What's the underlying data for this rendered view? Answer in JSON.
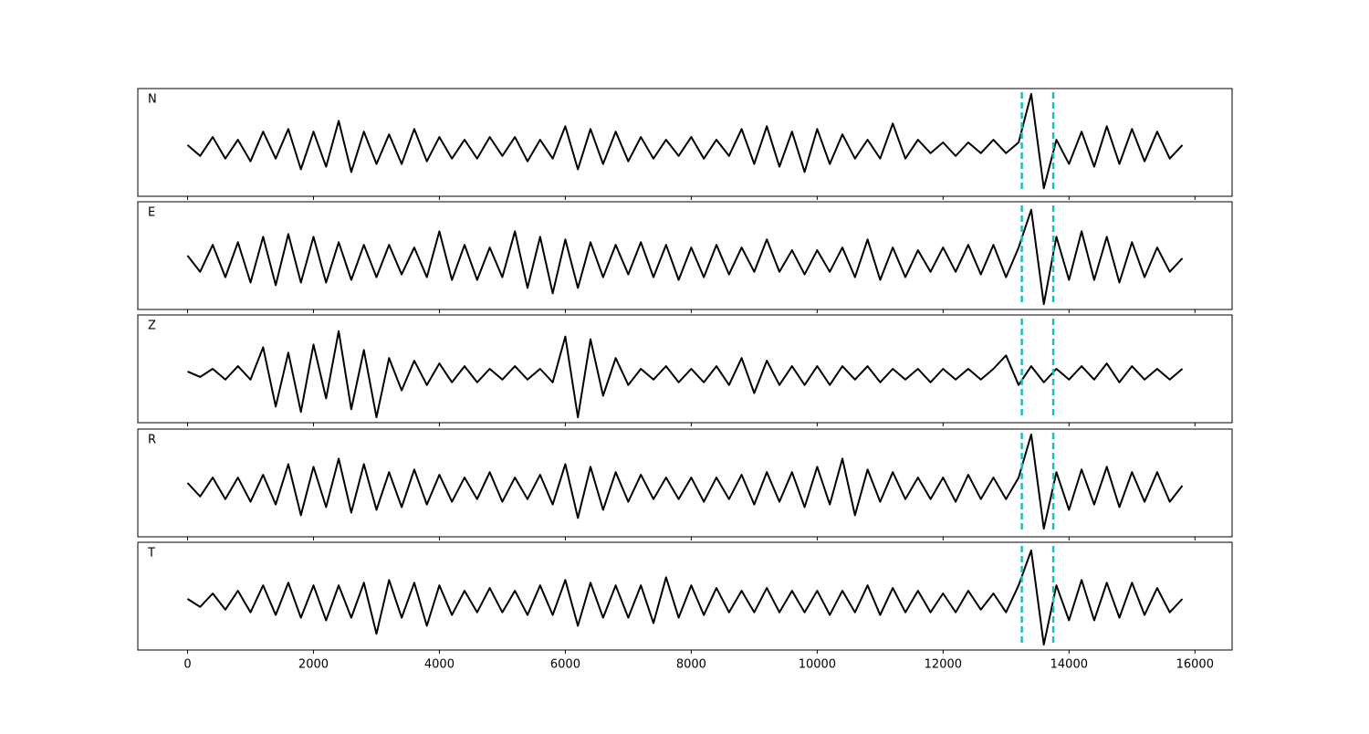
{
  "chart_data": [
    {
      "type": "line",
      "label": "N",
      "xlim": [
        -790,
        16590
      ],
      "ylim": [
        -0.9,
        1.1
      ],
      "vlines": [
        13250,
        13750
      ],
      "vline_color": "#17bfbf",
      "x": [
        0,
        200,
        400,
        600,
        800,
        1000,
        1200,
        1400,
        1600,
        1800,
        2000,
        2200,
        2400,
        2600,
        2800,
        3000,
        3200,
        3400,
        3600,
        3800,
        4000,
        4200,
        4400,
        4600,
        4800,
        5000,
        5200,
        5400,
        5600,
        5800,
        6000,
        6200,
        6400,
        6600,
        6800,
        7000,
        7200,
        7400,
        7600,
        7800,
        8000,
        8200,
        8400,
        8600,
        8800,
        9000,
        9200,
        9400,
        9600,
        9800,
        10000,
        10200,
        10400,
        10600,
        10800,
        11000,
        11200,
        11400,
        11600,
        11800,
        12000,
        12200,
        12400,
        12600,
        12800,
        13000,
        13200,
        13400,
        13600,
        13800,
        14000,
        14200,
        14400,
        14600,
        14800,
        15000,
        15200,
        15400,
        15600,
        15800
      ],
      "series": [
        {
          "color": "#000000",
          "values": [
            0.05,
            -0.15,
            0.2,
            -0.2,
            0.15,
            -0.25,
            0.3,
            -0.2,
            0.35,
            -0.4,
            0.3,
            -0.35,
            0.5,
            -0.45,
            0.3,
            -0.3,
            0.25,
            -0.3,
            0.35,
            -0.25,
            0.2,
            -0.2,
            0.15,
            -0.2,
            0.2,
            -0.15,
            0.2,
            -0.25,
            0.15,
            -0.2,
            0.4,
            -0.4,
            0.35,
            -0.3,
            0.3,
            -0.25,
            0.2,
            -0.2,
            0.15,
            -0.15,
            0.2,
            -0.2,
            0.15,
            -0.15,
            0.35,
            -0.3,
            0.4,
            -0.35,
            0.3,
            -0.45,
            0.35,
            -0.3,
            0.25,
            -0.2,
            0.15,
            -0.2,
            0.45,
            -0.2,
            0.15,
            -0.1,
            0.1,
            -0.15,
            0.1,
            -0.1,
            0.15,
            -0.1,
            0.1,
            1.0,
            -0.75,
            0.15,
            -0.3,
            0.3,
            -0.35,
            0.4,
            -0.3,
            0.35,
            -0.25,
            0.3,
            -0.2,
            0.05
          ]
        }
      ]
    },
    {
      "type": "line",
      "label": "E",
      "xlim": [
        -790,
        16590
      ],
      "ylim": [
        -0.9,
        1.1
      ],
      "vlines": [
        13250,
        13750
      ],
      "vline_color": "#17bfbf",
      "x": [
        0,
        200,
        400,
        600,
        800,
        1000,
        1200,
        1400,
        1600,
        1800,
        2000,
        2200,
        2400,
        2600,
        2800,
        3000,
        3200,
        3400,
        3600,
        3800,
        4000,
        4200,
        4400,
        4600,
        4800,
        5000,
        5200,
        5400,
        5600,
        5800,
        6000,
        6200,
        6400,
        6600,
        6800,
        7000,
        7200,
        7400,
        7600,
        7800,
        8000,
        8200,
        8400,
        8600,
        8800,
        9000,
        9200,
        9400,
        9600,
        9800,
        10000,
        10200,
        10400,
        10600,
        10800,
        11000,
        11200,
        11400,
        11600,
        11800,
        12000,
        12200,
        12400,
        12600,
        12800,
        13000,
        13200,
        13400,
        13600,
        13800,
        14000,
        14200,
        14400,
        14600,
        14800,
        15000,
        15200,
        15400,
        15600,
        15800
      ],
      "series": [
        {
          "color": "#000000",
          "values": [
            0.1,
            -0.2,
            0.3,
            -0.3,
            0.35,
            -0.4,
            0.45,
            -0.45,
            0.5,
            -0.4,
            0.45,
            -0.4,
            0.35,
            -0.35,
            0.3,
            -0.3,
            0.3,
            -0.25,
            0.25,
            -0.3,
            0.55,
            -0.35,
            0.3,
            -0.35,
            0.25,
            -0.3,
            0.55,
            -0.5,
            0.45,
            -0.6,
            0.4,
            -0.5,
            0.35,
            -0.3,
            0.3,
            -0.25,
            0.35,
            -0.3,
            0.3,
            -0.35,
            0.25,
            -0.3,
            0.3,
            -0.25,
            0.25,
            -0.2,
            0.4,
            -0.2,
            0.2,
            -0.25,
            0.2,
            -0.2,
            0.25,
            -0.3,
            0.4,
            -0.35,
            0.25,
            -0.3,
            0.2,
            -0.2,
            0.25,
            -0.2,
            0.3,
            -0.25,
            0.3,
            -0.3,
            0.25,
            0.95,
            -0.8,
            0.45,
            -0.35,
            0.55,
            -0.35,
            0.45,
            -0.4,
            0.35,
            -0.3,
            0.25,
            -0.2,
            0.05
          ]
        }
      ]
    },
    {
      "type": "line",
      "label": "Z",
      "xlim": [
        -790,
        16590
      ],
      "ylim": [
        -0.9,
        1.1
      ],
      "vlines": [
        13250,
        13750
      ],
      "vline_color": "#17bfbf",
      "x": [
        0,
        200,
        400,
        600,
        800,
        1000,
        1200,
        1400,
        1600,
        1800,
        2000,
        2200,
        2400,
        2600,
        2800,
        3000,
        3200,
        3400,
        3600,
        3800,
        4000,
        4200,
        4400,
        4600,
        4800,
        5000,
        5200,
        5400,
        5600,
        5800,
        6000,
        6200,
        6400,
        6600,
        6800,
        7000,
        7200,
        7400,
        7600,
        7800,
        8000,
        8200,
        8400,
        8600,
        8800,
        9000,
        9200,
        9400,
        9600,
        9800,
        10000,
        10200,
        10400,
        10600,
        10800,
        11000,
        11200,
        11400,
        11600,
        11800,
        12000,
        12200,
        12400,
        12600,
        12800,
        13000,
        13200,
        13400,
        13600,
        13800,
        14000,
        14200,
        14400,
        14600,
        14800,
        15000,
        15200,
        15400,
        15600,
        15800
      ],
      "series": [
        {
          "color": "#000000",
          "values": [
            0.05,
            -0.05,
            0.1,
            -0.1,
            0.15,
            -0.1,
            0.5,
            -0.6,
            0.4,
            -0.7,
            0.55,
            -0.45,
            0.8,
            -0.65,
            0.45,
            -0.8,
            0.3,
            -0.3,
            0.25,
            -0.2,
            0.2,
            -0.15,
            0.15,
            -0.15,
            0.1,
            -0.1,
            0.15,
            -0.1,
            0.1,
            -0.15,
            0.7,
            -0.8,
            0.65,
            -0.4,
            0.3,
            -0.2,
            0.1,
            -0.1,
            0.15,
            -0.15,
            0.1,
            -0.15,
            0.15,
            -0.2,
            0.3,
            -0.35,
            0.25,
            -0.2,
            0.15,
            -0.2,
            0.15,
            -0.2,
            0.15,
            -0.1,
            0.15,
            -0.15,
            0.1,
            -0.1,
            0.1,
            -0.15,
            0.1,
            -0.1,
            0.1,
            -0.1,
            0.1,
            0.35,
            -0.2,
            0.15,
            -0.15,
            0.1,
            -0.1,
            0.15,
            -0.1,
            0.2,
            -0.15,
            0.15,
            -0.1,
            0.1,
            -0.1,
            0.1
          ]
        }
      ]
    },
    {
      "type": "line",
      "label": "R",
      "xlim": [
        -790,
        16590
      ],
      "ylim": [
        -0.9,
        1.1
      ],
      "vlines": [
        13250,
        13750
      ],
      "vline_color": "#17bfbf",
      "x": [
        0,
        200,
        400,
        600,
        800,
        1000,
        1200,
        1400,
        1600,
        1800,
        2000,
        2200,
        2400,
        2600,
        2800,
        3000,
        3200,
        3400,
        3600,
        3800,
        4000,
        4200,
        4400,
        4600,
        4800,
        5000,
        5200,
        5400,
        5600,
        5800,
        6000,
        6200,
        6400,
        6600,
        6800,
        7000,
        7200,
        7400,
        7600,
        7800,
        8000,
        8200,
        8400,
        8600,
        8800,
        9000,
        9200,
        9400,
        9600,
        9800,
        10000,
        10200,
        10400,
        10600,
        10800,
        11000,
        11200,
        11400,
        11600,
        11800,
        12000,
        12200,
        12400,
        12600,
        12800,
        13000,
        13200,
        13400,
        13600,
        13800,
        14000,
        14200,
        14400,
        14600,
        14800,
        15000,
        15200,
        15400,
        15600,
        15800
      ],
      "series": [
        {
          "color": "#000000",
          "values": [
            0.1,
            -0.15,
            0.2,
            -0.2,
            0.2,
            -0.25,
            0.25,
            -0.3,
            0.45,
            -0.5,
            0.4,
            -0.35,
            0.55,
            -0.45,
            0.45,
            -0.4,
            0.3,
            -0.35,
            0.35,
            -0.3,
            0.25,
            -0.25,
            0.2,
            -0.2,
            0.3,
            -0.25,
            0.2,
            -0.2,
            0.25,
            -0.3,
            0.45,
            -0.55,
            0.4,
            -0.4,
            0.3,
            -0.25,
            0.25,
            -0.2,
            0.2,
            -0.2,
            0.2,
            -0.25,
            0.2,
            -0.2,
            0.25,
            -0.3,
            0.3,
            -0.25,
            0.3,
            -0.35,
            0.4,
            -0.3,
            0.55,
            -0.5,
            0.35,
            -0.25,
            0.3,
            -0.2,
            0.2,
            -0.2,
            0.2,
            -0.25,
            0.25,
            -0.2,
            0.2,
            -0.2,
            0.2,
            1.0,
            -0.75,
            0.3,
            -0.4,
            0.35,
            -0.3,
            0.4,
            -0.35,
            0.3,
            -0.25,
            0.3,
            -0.25,
            0.05
          ]
        }
      ]
    },
    {
      "type": "line",
      "label": "T",
      "xlim": [
        -790,
        16590
      ],
      "ylim": [
        -0.9,
        1.1
      ],
      "vlines": [
        13250,
        13750
      ],
      "vline_color": "#17bfbf",
      "xticks": [
        0,
        2000,
        4000,
        6000,
        8000,
        10000,
        12000,
        14000,
        16000
      ],
      "x": [
        0,
        200,
        400,
        600,
        800,
        1000,
        1200,
        1400,
        1600,
        1800,
        2000,
        2200,
        2400,
        2600,
        2800,
        3000,
        3200,
        3400,
        3600,
        3800,
        4000,
        4200,
        4400,
        4600,
        4800,
        5000,
        5200,
        5400,
        5600,
        5800,
        6000,
        6200,
        6400,
        6600,
        6800,
        7000,
        7200,
        7400,
        7600,
        7800,
        8000,
        8200,
        8400,
        8600,
        8800,
        9000,
        9200,
        9400,
        9600,
        9800,
        10000,
        10200,
        10400,
        10600,
        10800,
        11000,
        11200,
        11400,
        11600,
        11800,
        12000,
        12200,
        12400,
        12600,
        12800,
        13000,
        13200,
        13400,
        13600,
        13800,
        14000,
        14200,
        14400,
        14600,
        14800,
        15000,
        15200,
        15400,
        15600,
        15800
      ],
      "series": [
        {
          "color": "#000000",
          "values": [
            0.05,
            -0.1,
            0.15,
            -0.15,
            0.2,
            -0.2,
            0.3,
            -0.25,
            0.35,
            -0.3,
            0.3,
            -0.35,
            0.3,
            -0.3,
            0.35,
            -0.6,
            0.4,
            -0.3,
            0.35,
            -0.45,
            0.3,
            -0.25,
            0.2,
            -0.2,
            0.25,
            -0.2,
            0.2,
            -0.25,
            0.3,
            -0.25,
            0.4,
            -0.45,
            0.35,
            -0.3,
            0.3,
            -0.3,
            0.3,
            -0.4,
            0.45,
            -0.3,
            0.3,
            -0.25,
            0.25,
            -0.2,
            0.2,
            -0.2,
            0.25,
            -0.2,
            0.2,
            -0.2,
            0.2,
            -0.25,
            0.2,
            -0.2,
            0.3,
            -0.25,
            0.25,
            -0.2,
            0.2,
            -0.2,
            0.15,
            -0.2,
            0.2,
            -0.15,
            0.15,
            -0.2,
            0.3,
            0.95,
            -0.8,
            0.3,
            -0.35,
            0.4,
            -0.35,
            0.35,
            -0.3,
            0.35,
            -0.25,
            0.25,
            -0.2,
            0.05
          ]
        }
      ]
    }
  ]
}
